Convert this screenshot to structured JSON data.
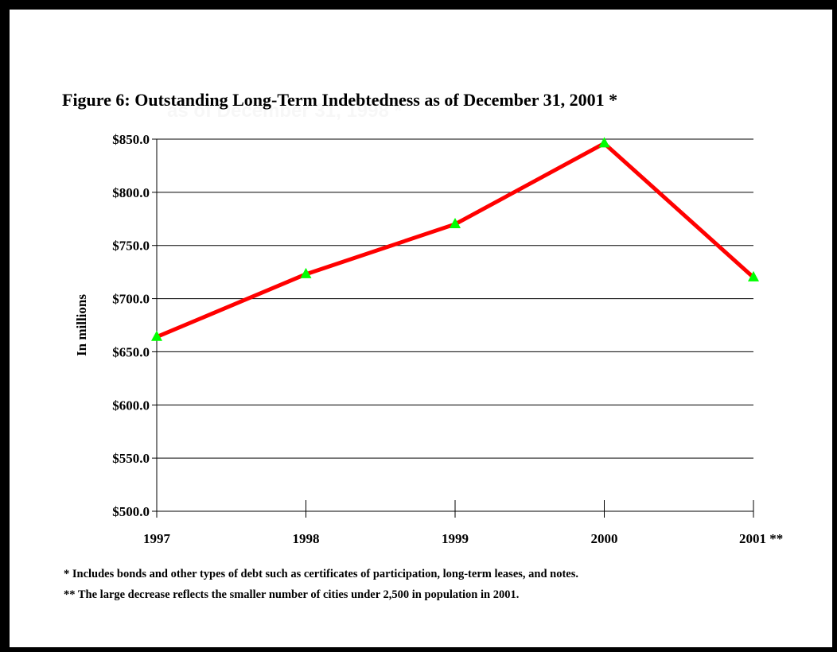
{
  "figure": {
    "title": "Figure 6:  Outstanding Long-Term Indebtedness as of December 31, 2001 *",
    "ghost_text": "as of December 31, 1998 *",
    "notes": [
      "* Includes bonds and other types of debt such as certificates of participation, long-term leases, and notes.",
      "** The large decrease reflects the smaller number of cities under 2,500 in population in 2001."
    ]
  },
  "colors": {
    "line": "#ff0000",
    "marker": "#00ff00",
    "grid": "#000000"
  },
  "chart_data": {
    "type": "line",
    "title": "Figure 6:  Outstanding Long-Term Indebtedness as of December 31, 2001 *",
    "xlabel": "",
    "ylabel": "In millions",
    "categories": [
      "1997",
      "1998",
      "1999",
      "2000",
      "2001 **"
    ],
    "series": [
      {
        "values": [
          664,
          723,
          770,
          846,
          720
        ]
      }
    ],
    "y_ticks": [
      "$500.0",
      "$550.0",
      "$600.0",
      "$650.0",
      "$700.0",
      "$750.0",
      "$800.0",
      "$850.0"
    ],
    "ylim": [
      500,
      850
    ],
    "grid": true,
    "legend": "none",
    "marker": "triangle"
  }
}
